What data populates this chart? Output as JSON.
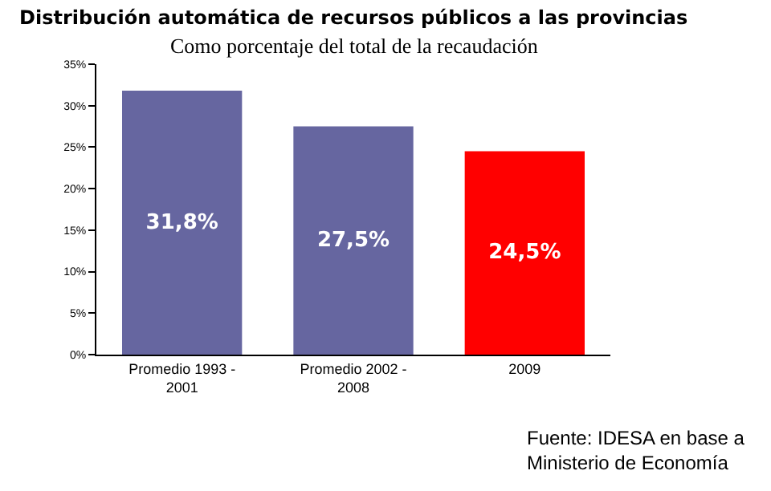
{
  "chart_data": {
    "type": "bar",
    "title": "Distribución automática de recursos públicos a las provincias",
    "subtitle": "Como porcentaje del total de la recaudación",
    "categories": [
      "Promedio 1993 -\n2001",
      "Promedio 2002 -\n2008",
      "2009"
    ],
    "values": [
      31.8,
      27.5,
      24.5
    ],
    "colors": [
      "#6666a0",
      "#6666a0",
      "#ff0000"
    ],
    "value_labels": [
      "31,8%",
      "27,5%",
      "24,5%"
    ],
    "ylim": [
      0,
      35
    ],
    "yticks": [
      {
        "value": 0,
        "label": "0%"
      },
      {
        "value": 5,
        "label": "5%"
      },
      {
        "value": 10,
        "label": "10%"
      },
      {
        "value": 15,
        "label": "15%"
      },
      {
        "value": 20,
        "label": "20%"
      },
      {
        "value": 25,
        "label": "25%"
      },
      {
        "value": 30,
        "label": "30%"
      },
      {
        "value": 35,
        "label": "35%"
      }
    ],
    "grid": false,
    "annotations": [
      "Fuente: IDESA en base a\nMinisterio de Economía"
    ]
  }
}
